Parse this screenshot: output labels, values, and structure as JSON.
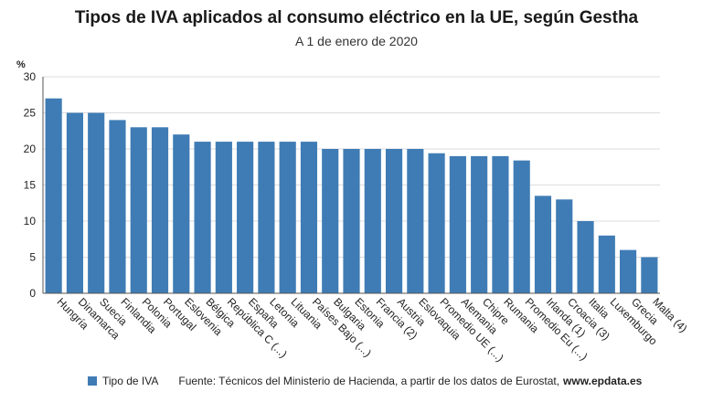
{
  "header": {
    "title": "Tipos de IVA aplicados al consumo eléctrico en la UE, según Gestha",
    "subtitle": "A 1 de enero de 2020"
  },
  "footer": {
    "source": "Fuente: Técnicos del Ministerio de Hacienda, a partir de los datos de Eurostat,",
    "source_domain": "www.epdata.es"
  },
  "colors": {
    "bar": "#3f7cb5",
    "grid": "#dcdcdc",
    "axis": "#555555",
    "text": "#222222"
  },
  "chart_data": {
    "type": "bar",
    "title": "Tipos de IVA aplicados al consumo eléctrico en la UE, según Gestha",
    "subtitle": "A 1 de enero de 2020",
    "ylabel": "%",
    "xlabel": "",
    "ylim": [
      0,
      30
    ],
    "yticks": [
      0,
      5,
      10,
      15,
      20,
      25,
      30
    ],
    "grid": true,
    "legend": "bottom-left",
    "categories": [
      "Hungría",
      "Dinamarca",
      "Suecia",
      "Finlandia",
      "Polonia",
      "Portugal",
      "Eslovenia",
      "Bélgica",
      "República C (...)",
      "España",
      "Letonia",
      "Lituania",
      "Países Bajo (...)",
      "Bulgaria",
      "Estonia",
      "Francia (2)",
      "Austria",
      "Eslovaquia",
      "Promedio UE (...)",
      "Alemania",
      "Chipre",
      "Rumania",
      "Promedio Eu (...)",
      "Irlanda (1)",
      "Croacia (3)",
      "Italia",
      "Luxemburgo",
      "Grecia",
      "Malta (4)"
    ],
    "series": [
      {
        "name": "Tipo de IVA",
        "values": [
          27,
          25,
          25,
          24,
          23,
          23,
          22,
          21,
          21,
          21,
          21,
          21,
          21,
          20,
          20,
          20,
          20,
          20,
          19.4,
          19,
          19,
          19,
          18.4,
          13.5,
          13,
          10,
          8,
          6,
          5
        ]
      }
    ]
  }
}
